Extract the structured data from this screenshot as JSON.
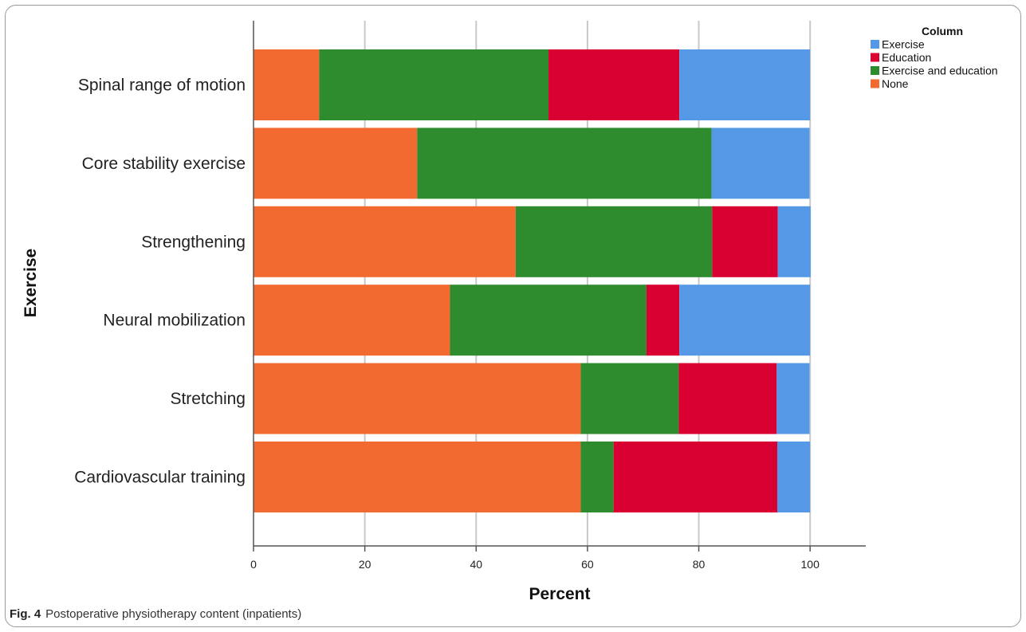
{
  "caption": {
    "label": "Fig. 4",
    "text": "Postoperative physiotherapy content (inpatients)"
  },
  "chart_data": {
    "type": "bar",
    "orientation": "horizontal",
    "stacked": true,
    "xlabel": "Percent",
    "ylabel": "Exercise",
    "xlim": [
      0,
      110
    ],
    "xticks": [
      0,
      20,
      40,
      60,
      80,
      100
    ],
    "grid": true,
    "legend_placement": "top-right",
    "legend_title": "Column",
    "legend": [
      "Exercise",
      "Education",
      "Exercise and education",
      "None"
    ],
    "categories": [
      "Spinal range of motion",
      "Core stability exercise",
      "Strengthening",
      "Neural mobilization",
      "Stretching",
      "Cardiovascular training"
    ],
    "series": [
      {
        "name": "None",
        "color": "#f26a30",
        "values": [
          11.8,
          29.4,
          47.1,
          35.3,
          58.8,
          58.8
        ]
      },
      {
        "name": "Exercise and education",
        "color": "#2e8b2e",
        "values": [
          41.2,
          52.9,
          35.3,
          35.3,
          17.6,
          5.9
        ]
      },
      {
        "name": "Education",
        "color": "#d90032",
        "values": [
          23.5,
          0,
          11.8,
          5.9,
          17.6,
          29.4
        ]
      },
      {
        "name": "Exercise",
        "color": "#5599e6",
        "values": [
          23.5,
          17.6,
          5.9,
          23.5,
          5.9,
          5.9
        ]
      }
    ]
  }
}
